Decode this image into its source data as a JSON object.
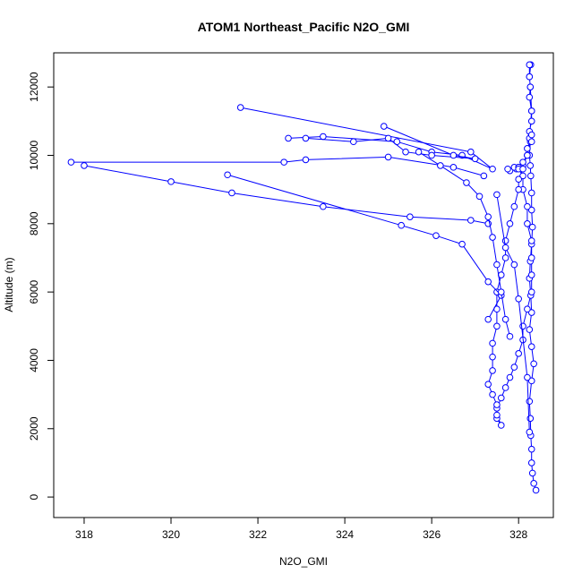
{
  "chart_data": {
    "type": "line",
    "title": "ATOM1 Northeast_Pacific N2O_GMI",
    "xlabel": "N2O_GMI",
    "ylabel": "Altitude (m)",
    "xlim": [
      317.3,
      328.8
    ],
    "ylim": [
      -600,
      13000
    ],
    "xticks": [
      318,
      320,
      322,
      324,
      326,
      328
    ],
    "yticks": [
      0,
      2000,
      4000,
      6000,
      8000,
      10000,
      12000
    ],
    "grid": false,
    "legend": "none",
    "series": [
      {
        "color": "#0000ff",
        "marker": "open-circle",
        "x": [
          328.4,
          328.35,
          328.32,
          328.3,
          328.3,
          328.28,
          328.27,
          328.25,
          328.3,
          328.35,
          328.3,
          328.25,
          328.3,
          328.28,
          328.25,
          328.27,
          328.3,
          328.32,
          328.3,
          328.3,
          328.28,
          328.27,
          328.25,
          328.27,
          328.25,
          328.3,
          328.3,
          328.25,
          328.27,
          328.25,
          328.28,
          328.25,
          328.25,
          328.27,
          328.3,
          328.25,
          328.2,
          328.1,
          328.0,
          327.95,
          327.8,
          327.75,
          327.9,
          328.0,
          328.0,
          328.1,
          328.1,
          328.2,
          328.2,
          328.3,
          328.3,
          328.3,
          328.3,
          328.2,
          328.1,
          328.1,
          328.0,
          327.9,
          327.8,
          327.7,
          327.6,
          327.5,
          327.5,
          327.6,
          327.5,
          327.5,
          327.4,
          327.3,
          327.4,
          327.4,
          327.4,
          327.5,
          327.5,
          327.5,
          327.6,
          327.7,
          327.7,
          327.8,
          327.9,
          328.0,
          328.0,
          328.1,
          328.1,
          328.2,
          328.2,
          328.3,
          328.3
        ],
        "y": [
          200,
          400,
          700,
          1000,
          1400,
          1800,
          2300,
          2800,
          3400,
          3900,
          4400,
          4900,
          5400,
          5900,
          6400,
          6900,
          7400,
          7900,
          8400,
          8900,
          9400,
          9700,
          10000,
          10400,
          10700,
          11000,
          11300,
          11700,
          12000,
          12300,
          12650,
          12650,
          12300,
          12000,
          11300,
          10500,
          10000,
          9700,
          9650,
          9600,
          9550,
          9600,
          9650,
          9650,
          9600,
          9400,
          9000,
          8500,
          8000,
          7500,
          7000,
          6500,
          6000,
          5500,
          5000,
          4600,
          4200,
          3800,
          3500,
          3200,
          2900,
          2600,
          2300,
          2100,
          2400,
          2700,
          3000,
          3300,
          3700,
          4100,
          4500,
          5000,
          5500,
          6000,
          6500,
          7000,
          7500,
          8000,
          8500,
          9000,
          9300,
          9600,
          9800,
          10000,
          10200,
          10400,
          10600
        ]
      },
      {
        "color": "#0000ff",
        "marker": "open-circle",
        "x": [
          321.6,
          326.9,
          327.4,
          326.7,
          326.0,
          325.2,
          323.5,
          322.7
        ],
        "y": [
          11400,
          10100,
          9600,
          10000,
          10100,
          10400,
          10550,
          10500
        ]
      },
      {
        "color": "#0000ff",
        "marker": "open-circle",
        "x": [
          324.9,
          326.5,
          327.0,
          326.0,
          325.4,
          325.0,
          324.2,
          323.1
        ],
        "y": [
          10850,
          10000,
          9900,
          10000,
          10100,
          10500,
          10400,
          10500
        ]
      },
      {
        "color": "#0000ff",
        "marker": "open-circle",
        "x": [
          317.7,
          322.6,
          323.1,
          325.0,
          326.5,
          327.2
        ],
        "y": [
          9800,
          9800,
          9870,
          9950,
          9650,
          9400
        ]
      },
      {
        "color": "#0000ff",
        "marker": "open-circle",
        "x": [
          318.0,
          320.0,
          321.4,
          323.5,
          325.5,
          326.9,
          327.3
        ],
        "y": [
          9700,
          9230,
          8900,
          8500,
          8200,
          8100,
          8000
        ]
      },
      {
        "color": "#0000ff",
        "marker": "open-circle",
        "x": [
          321.3,
          325.3,
          326.1,
          326.7,
          327.3,
          327.6,
          327.3
        ],
        "y": [
          9430,
          7950,
          7650,
          7400,
          6300,
          5900,
          5200
        ]
      },
      {
        "color": "#0000ff",
        "marker": "open-circle",
        "x": [
          325.7,
          326.2,
          326.8,
          327.1,
          327.3,
          327.4,
          327.5,
          327.6,
          327.7,
          327.8
        ],
        "y": [
          10100,
          9700,
          9200,
          8800,
          8200,
          7600,
          6800,
          6000,
          5200,
          4700
        ]
      },
      {
        "color": "#0000ff",
        "marker": "open-circle",
        "x": [
          327.5,
          327.7,
          327.9,
          328.0,
          328.2,
          328.25
        ],
        "y": [
          8850,
          7300,
          6800,
          5800,
          3500,
          1900
        ]
      }
    ]
  }
}
